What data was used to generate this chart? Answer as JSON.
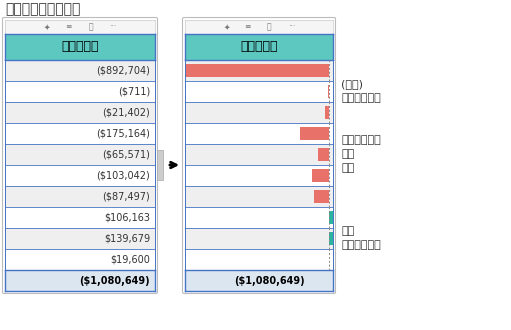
{
  "title": "将数值转换为数据条",
  "column_header": "总销售差额",
  "values": [
    "($892,704)",
    "($711)",
    "($21,402)",
    "($175,164)",
    "($65,571)",
    "($103,042)",
    "($87,497)",
    "$106,163",
    "$139,679",
    "$19,600"
  ],
  "footer": "($1,080,649)",
  "numeric_values": [
    -892704,
    -711,
    -21402,
    -175164,
    -65571,
    -103042,
    -87497,
    106163,
    139679,
    19600
  ],
  "header_color": "#5DC8BF",
  "row_colors": [
    "#efefef",
    "#ffffff"
  ],
  "border_color": "#4472C4",
  "neg_bar_color": "#E8726A",
  "pos_bar_color": "#2BB5A0",
  "footer_color": "#dce6f1",
  "bg_color": "#ffffff",
  "annotation_neg": "(负值)\n是红色数据条",
  "annotation_mid": "条形大小显示\n相对\n数额",
  "annotation_pos": "正值\n是绿色数据条",
  "title_fontsize": 10,
  "cell_fontsize": 7,
  "header_fontsize": 9,
  "ann_fontsize": 8
}
